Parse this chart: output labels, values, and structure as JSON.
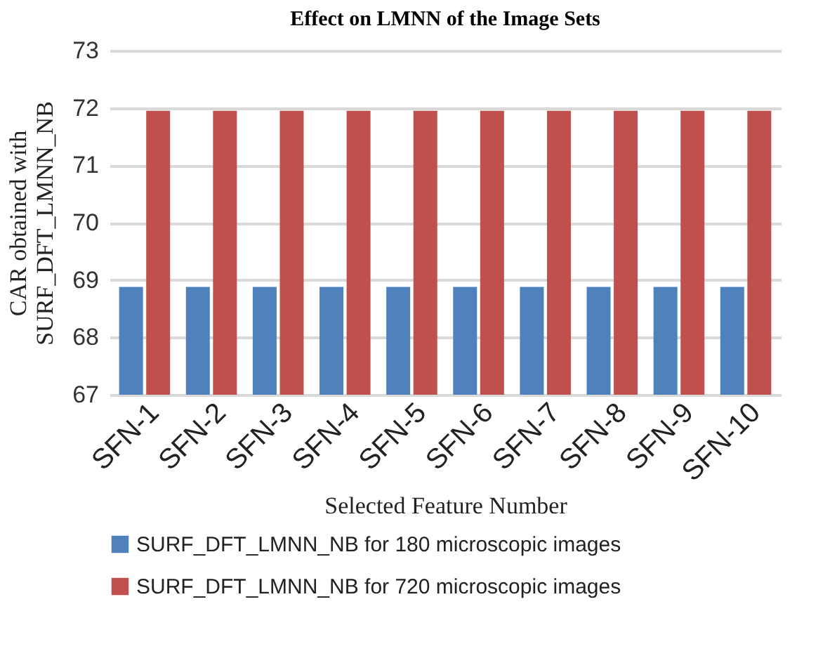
{
  "chart_data": {
    "type": "bar",
    "title": "Effect on LMNN of the Image Sets",
    "xlabel": "Selected Feature Number",
    "ylabel": "CAR obtained with\nSURF_DFT_LMNN_NB",
    "categories": [
      "SFN-1",
      "SFN-2",
      "SFN-3",
      "SFN-4",
      "SFN-5",
      "SFN-6",
      "SFN-7",
      "SFN-8",
      "SFN-9",
      "SFN-10"
    ],
    "series": [
      {
        "name": "SURF_DFT_LMNN_NB for 180 microscopic images",
        "color": "#4f81bd",
        "values": [
          68.88,
          68.88,
          68.88,
          68.88,
          68.88,
          68.88,
          68.88,
          68.88,
          68.88,
          68.88
        ]
      },
      {
        "name": "SURF_DFT_LMNN_NB for 720 microscopic images",
        "color": "#c0504d",
        "values": [
          71.95,
          71.95,
          71.95,
          71.95,
          71.95,
          71.95,
          71.95,
          71.95,
          71.95,
          71.95
        ]
      }
    ],
    "ylim": [
      67,
      73
    ],
    "yticks": [
      67,
      68,
      69,
      70,
      71,
      72,
      73
    ],
    "grid": "y",
    "legend": "bottom"
  }
}
